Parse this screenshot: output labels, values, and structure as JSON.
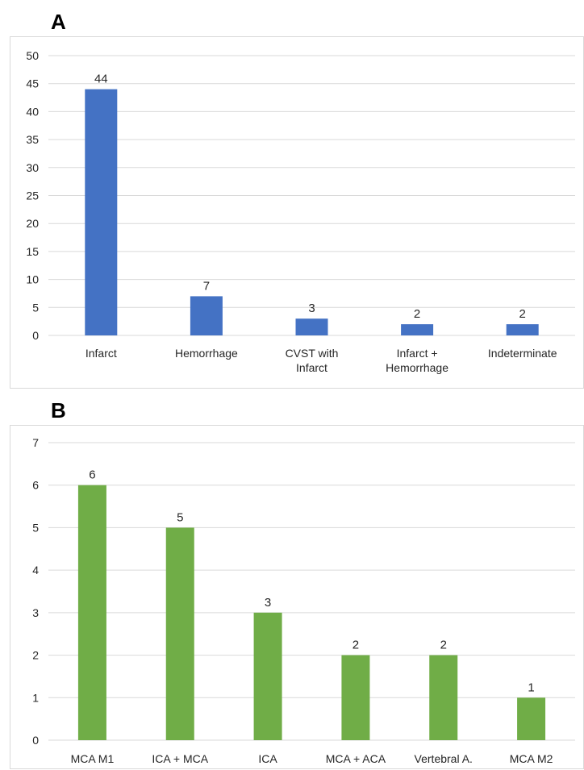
{
  "panels": {
    "a": {
      "label": "A"
    },
    "b": {
      "label": "B"
    }
  },
  "chart_data": [
    {
      "type": "bar",
      "categories": [
        "Infarct",
        "Hemorrhage",
        "CVST with\nInfarct",
        "Infarct +\nHemorrhage",
        "Indeterminate"
      ],
      "values": [
        44,
        7,
        3,
        2,
        2
      ],
      "ylim": [
        0,
        50
      ],
      "yticks": [
        0,
        5,
        10,
        15,
        20,
        25,
        30,
        35,
        40,
        45,
        50
      ],
      "color": "#4472c4",
      "grid": true,
      "legend": "none",
      "title": "",
      "xlabel": "",
      "ylabel": ""
    },
    {
      "type": "bar",
      "categories": [
        "MCA M1",
        "ICA + MCA",
        "ICA",
        "MCA + ACA",
        "Vertebral A.",
        "MCA M2"
      ],
      "values": [
        6,
        5,
        3,
        2,
        2,
        1
      ],
      "ylim": [
        0,
        7
      ],
      "yticks": [
        0,
        1,
        2,
        3,
        4,
        5,
        6,
        7
      ],
      "color": "#70ad47",
      "grid": true,
      "legend": "none",
      "title": "",
      "xlabel": "",
      "ylabel": ""
    }
  ]
}
